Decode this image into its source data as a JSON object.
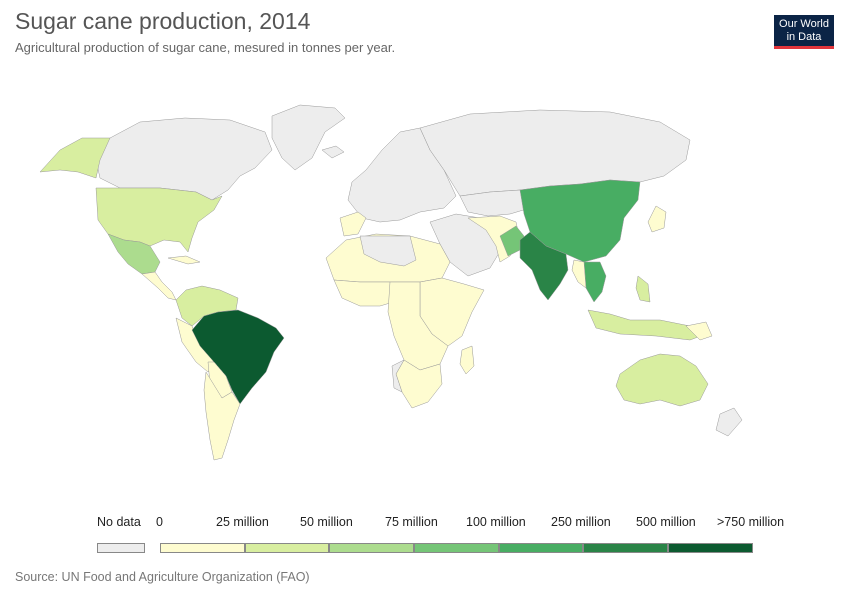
{
  "header": {
    "title": "Sugar cane production, 2014",
    "subtitle": "Agricultural production of sugar cane, mesured in tonnes per year."
  },
  "logo": {
    "line1": "Our World",
    "line2": "in Data"
  },
  "legend": {
    "no_data_label": "No data",
    "no_data_color": "#ededed",
    "labels": [
      "0",
      "25 million",
      "50 million",
      "75 million",
      "100 million",
      "250 million",
      "500 million",
      ">750 million"
    ],
    "colors": [
      "#fefcd0",
      "#d8eea0",
      "#acdc8e",
      "#75c577",
      "#48ad63",
      "#2a8447",
      "#0c5a30"
    ]
  },
  "source": "Source: UN Food and Agriculture Organization (FAO)",
  "map_data": {
    "type": "choropleth",
    "colors": {
      "nodata": "#ededed",
      "b0": "#fefcd0",
      "b1": "#d8eea0",
      "b2": "#acdc8e",
      "b3": "#75c577",
      "b4": "#48ad63",
      "b5": "#2a8447",
      "b6": "#0c5a30"
    }
  }
}
